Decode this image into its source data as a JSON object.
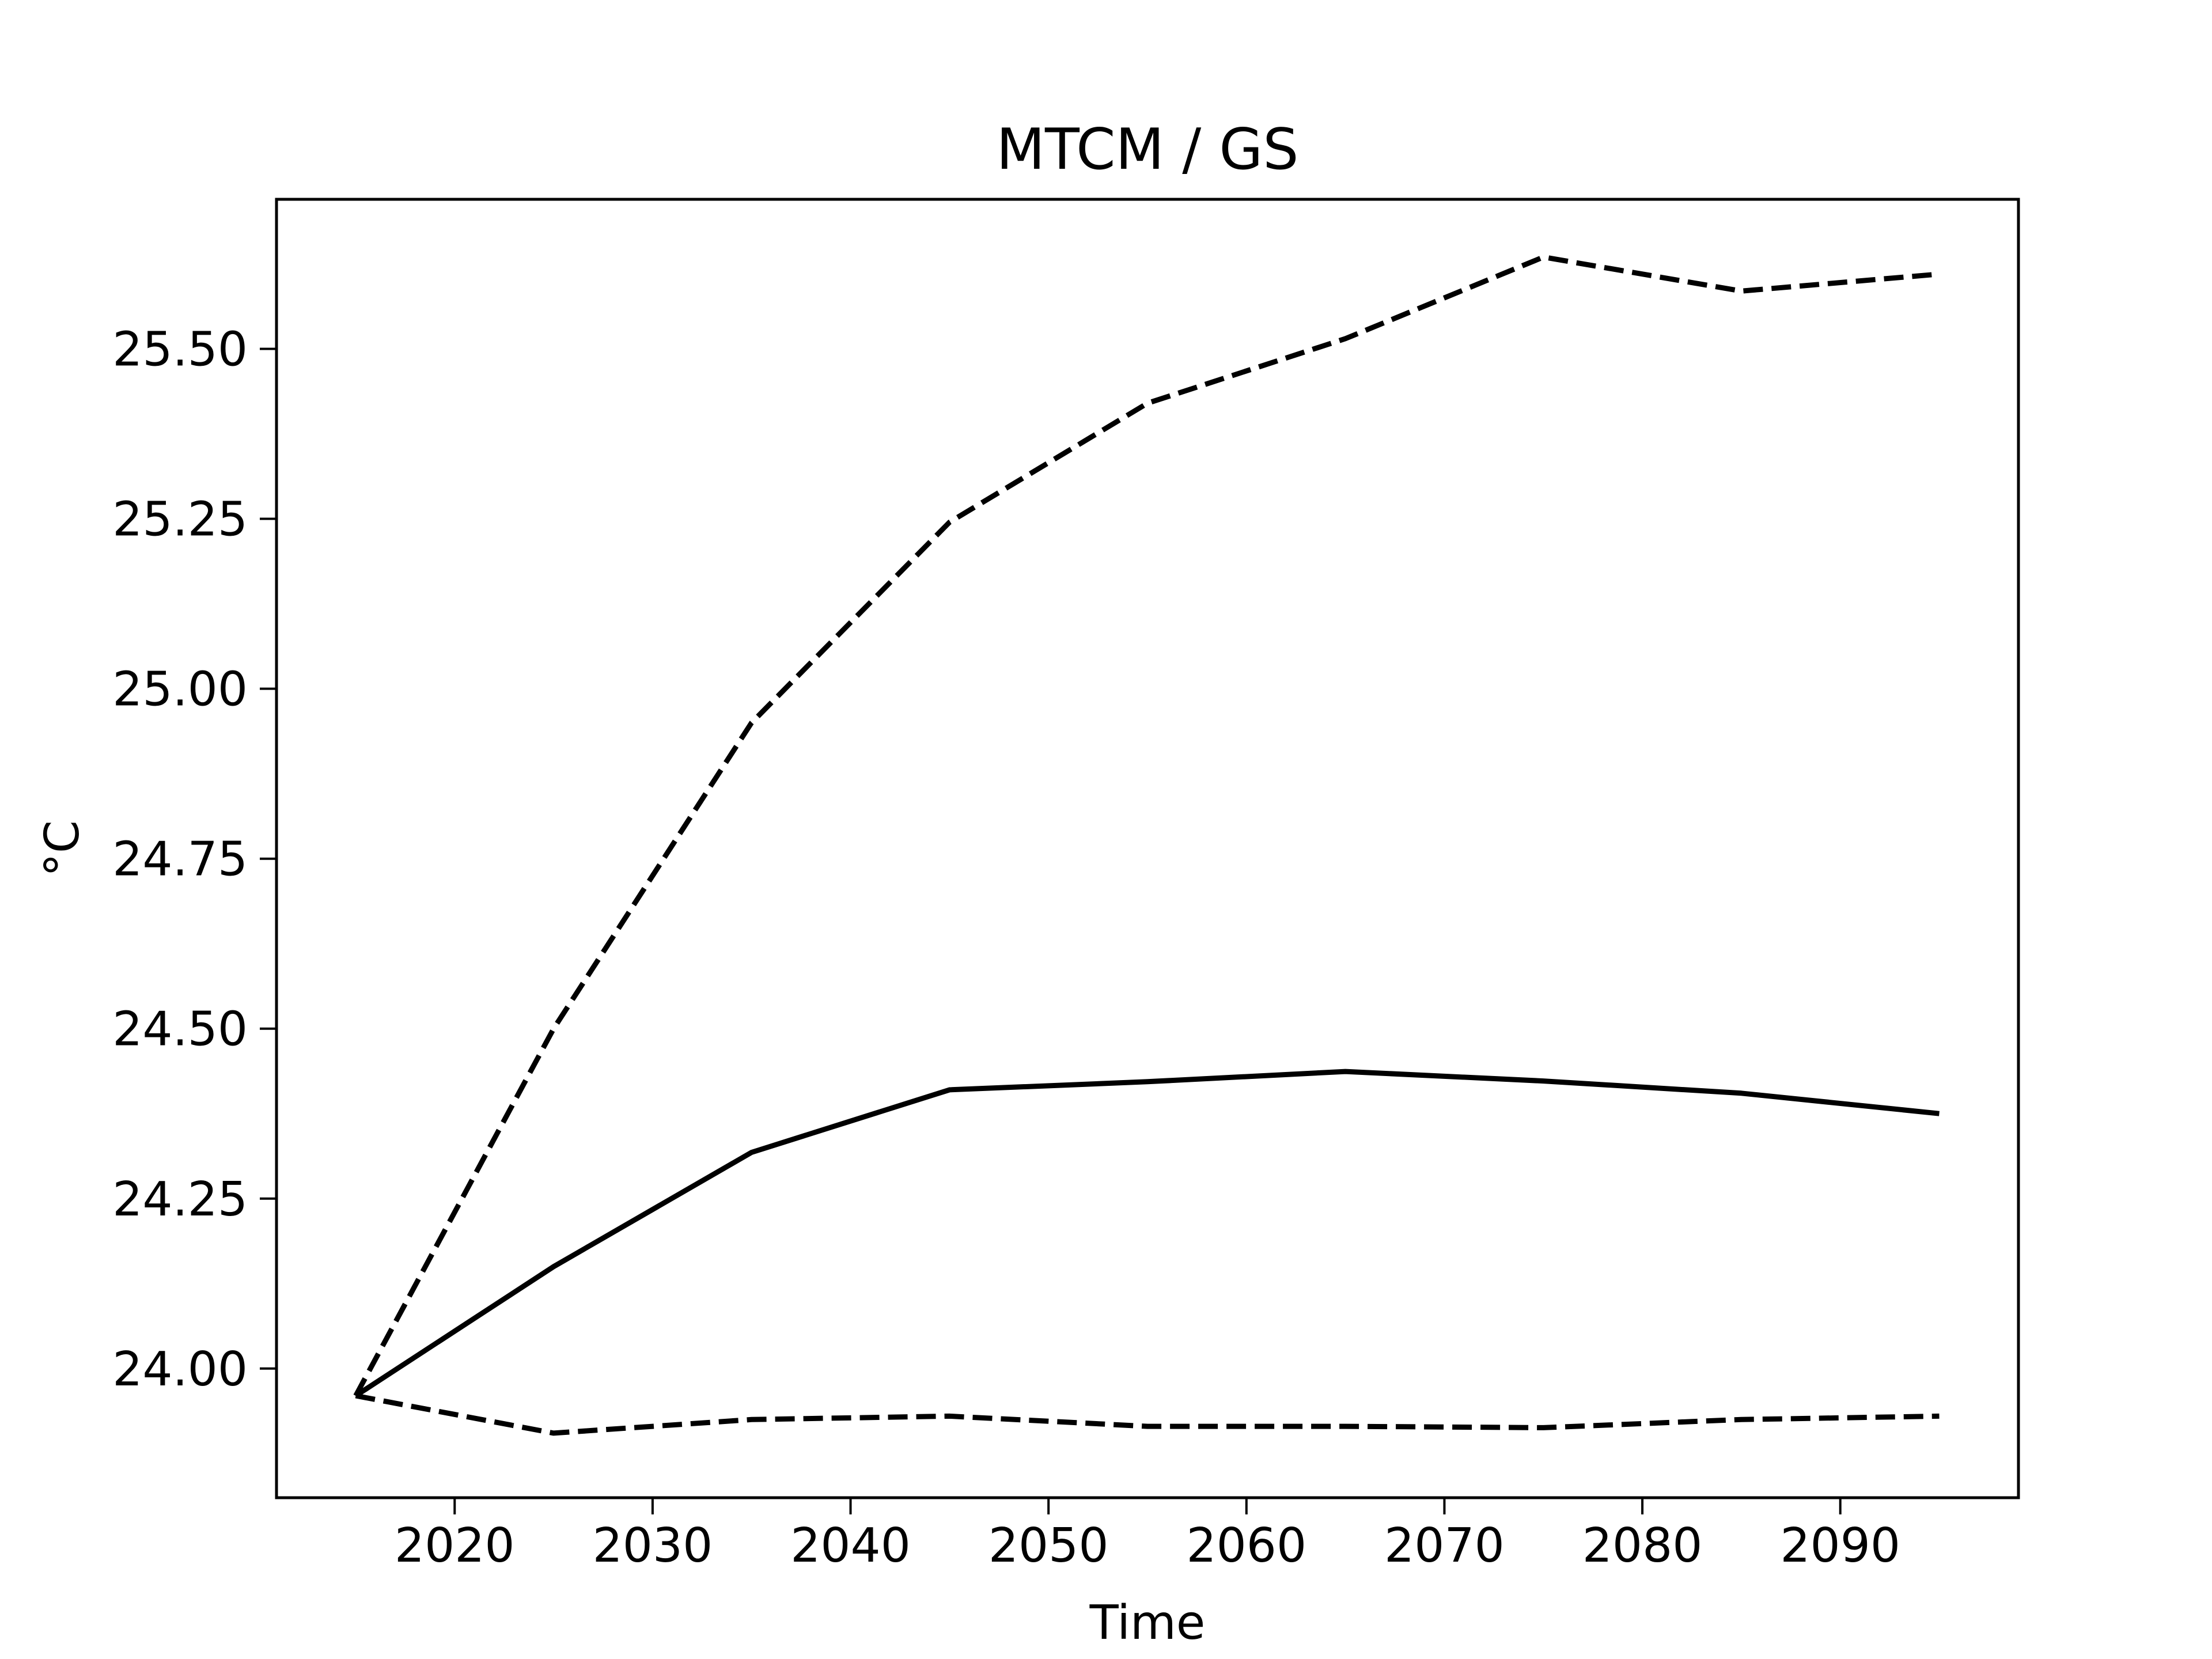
{
  "chart_data": {
    "type": "line",
    "title": "MTCM / GS",
    "xlabel": "Time",
    "ylabel": "°C",
    "x": [
      2015,
      2025,
      2035,
      2045,
      2055,
      2065,
      2075,
      2085,
      2095
    ],
    "xlim": [
      2011,
      2099
    ],
    "ylim": [
      23.81,
      25.72
    ],
    "x_ticks": [
      2020,
      2030,
      2040,
      2050,
      2060,
      2070,
      2080,
      2090
    ],
    "x_tick_labels": [
      "2020",
      "2030",
      "2040",
      "2050",
      "2060",
      "2070",
      "2080",
      "2090"
    ],
    "y_ticks": [
      24.0,
      24.25,
      24.5,
      24.75,
      25.0,
      25.25,
      25.5
    ],
    "y_tick_labels": [
      "24.00",
      "24.25",
      "24.50",
      "24.75",
      "25.00",
      "25.25",
      "25.50"
    ],
    "grid": false,
    "legend": false,
    "series": [
      {
        "style": "dashed",
        "color": "#000000",
        "values": [
          23.96,
          24.5,
          24.95,
          25.245,
          25.42,
          25.515,
          25.635,
          25.585,
          25.61
        ]
      },
      {
        "style": "solid",
        "color": "#000000",
        "values": [
          23.96,
          24.15,
          24.318,
          24.41,
          24.422,
          24.437,
          24.423,
          24.405,
          24.375
        ]
      },
      {
        "style": "dashed",
        "color": "#000000",
        "values": [
          23.96,
          23.905,
          23.925,
          23.93,
          23.915,
          23.915,
          23.913,
          23.925,
          23.93
        ]
      }
    ]
  }
}
